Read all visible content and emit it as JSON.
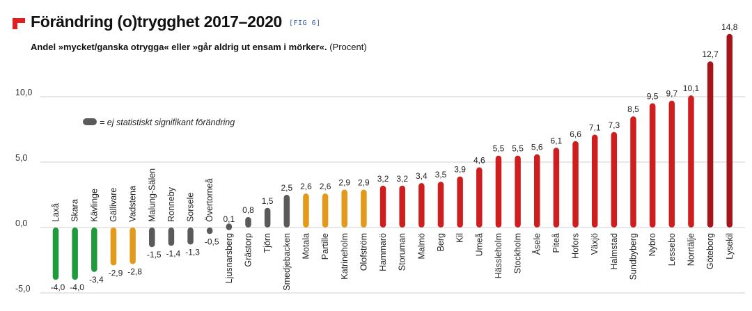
{
  "header": {
    "title": "Förändring (o)trygghet 2017–2020",
    "fig_tag": "[FIG 6]",
    "subtitle_bold": "Andel »mycket/ganska otrygga« eller »går aldrig ut ensam i mörker«.",
    "subtitle_unit": "(Procent)"
  },
  "legend": {
    "text": "= ej statistiskt signifikant förändring",
    "color": "#5a5a5a"
  },
  "colors": {
    "green": "#1f9a3c",
    "orange": "#e39a1a",
    "gray": "#5a5a5a",
    "red": "#cf1e1e",
    "darkred": "#a3161a",
    "logo": "#e02020"
  },
  "chart_data": {
    "type": "bar",
    "ylim": [
      -5,
      15
    ],
    "yticks": [
      {
        "value": -5,
        "label": "-5,0"
      },
      {
        "value": 0,
        "label": "0,0"
      },
      {
        "value": 5,
        "label": "5,0"
      },
      {
        "value": 10,
        "label": "10,0"
      }
    ],
    "grid": true,
    "categories": [
      "Laxå",
      "Skara",
      "Kävlinge",
      "Gällivare",
      "Vadstena",
      "Malung-Sälen",
      "Ronneby",
      "Sorsele",
      "Övertorneå",
      "Ljusnarsberg",
      "Grästorp",
      "Tjörn",
      "Smedjebacken",
      "Motala",
      "Partille",
      "Katrineholm",
      "Olofström",
      "Hammarö",
      "Storuman",
      "Malmö",
      "Berg",
      "Kil",
      "Umeå",
      "Hässleholm",
      "Stockholm",
      "Åsele",
      "Piteå",
      "Hofors",
      "Växjö",
      "Halmstad",
      "Sundbyberg",
      "Nybro",
      "Lessebo",
      "Norrtälje",
      "Göteborg",
      "Lysekil"
    ],
    "values": [
      -4.0,
      -4.0,
      -3.4,
      -2.9,
      -2.8,
      -1.5,
      -1.4,
      -1.3,
      -0.5,
      0.1,
      0.8,
      1.5,
      2.5,
      2.6,
      2.6,
      2.9,
      2.9,
      3.2,
      3.2,
      3.4,
      3.5,
      3.9,
      4.6,
      5.5,
      5.5,
      5.6,
      6.1,
      6.6,
      7.1,
      7.3,
      8.5,
      9.5,
      9.7,
      10.1,
      12.7,
      14.8
    ],
    "value_labels": [
      "-4,0",
      "-4,0",
      "-3,4",
      "-2,9",
      "-2,8",
      "-1,5",
      "-1,4",
      "-1,3",
      "-0,5",
      "0,1",
      "0,8",
      "1,5",
      "2,5",
      "2,6",
      "2,6",
      "2,9",
      "2,9",
      "3,2",
      "3,2",
      "3,4",
      "3,5",
      "3,9",
      "4,6",
      "5,5",
      "5,5",
      "5,6",
      "6,1",
      "6,6",
      "7,1",
      "7,3",
      "8,5",
      "9,5",
      "9,7",
      "10,1",
      "12,7",
      "14,8"
    ],
    "bar_colors": [
      "green",
      "green",
      "green",
      "orange",
      "orange",
      "gray",
      "gray",
      "gray",
      "gray",
      "gray",
      "gray",
      "gray",
      "gray",
      "orange",
      "orange",
      "orange",
      "orange",
      "red",
      "red",
      "red",
      "red",
      "red",
      "red",
      "red",
      "red",
      "red",
      "red",
      "red",
      "red",
      "red",
      "red",
      "red",
      "red",
      "red",
      "darkred",
      "darkred"
    ]
  }
}
